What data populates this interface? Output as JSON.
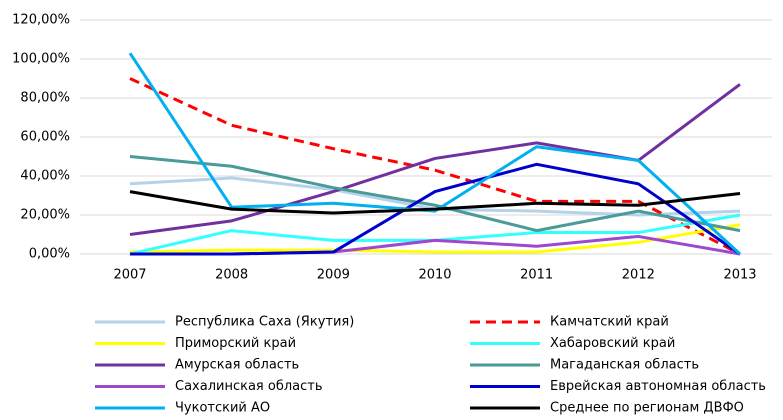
{
  "chart_data": {
    "type": "line",
    "categories": [
      "2007",
      "2008",
      "2009",
      "2010",
      "2011",
      "2012",
      "2013"
    ],
    "series": [
      {
        "name": "Республика Саха (Якутия)",
        "color": "#b4d3ea",
        "values": [
          36,
          39,
          33,
          23,
          22,
          20,
          22
        ]
      },
      {
        "name": "Камчатский край",
        "color": "#ff0000",
        "dash": true,
        "values": [
          90,
          66,
          54,
          43,
          27,
          27,
          0
        ]
      },
      {
        "name": "Приморский край",
        "color": "#ffff00",
        "values": [
          1,
          2,
          2,
          1,
          1,
          6,
          15
        ]
      },
      {
        "name": "Хабаровский край",
        "color": "#33ffff",
        "values": [
          0,
          12,
          7,
          7,
          11,
          11,
          20
        ]
      },
      {
        "name": "Амурская область",
        "color": "#7030a0",
        "values": [
          10,
          17,
          32,
          49,
          57,
          48,
          87
        ]
      },
      {
        "name": "Магаданская область",
        "color": "#4a9a98",
        "values": [
          50,
          45,
          34,
          25,
          12,
          22,
          12
        ]
      },
      {
        "name": "Сахалинская область",
        "color": "#9e48cf",
        "values": [
          0,
          0,
          1,
          7,
          4,
          9,
          0
        ]
      },
      {
        "name": "Еврейская автономная область",
        "color": "#0000cc",
        "values": [
          0,
          0,
          1,
          32,
          46,
          36,
          0
        ]
      },
      {
        "name": "Чукотский АО",
        "color": "#00b0f0",
        "values": [
          103,
          24,
          26,
          22,
          55,
          48,
          0
        ]
      },
      {
        "name": "Среднее по регионам ДВФО",
        "color": "#000000",
        "values": [
          32,
          23,
          21,
          23,
          26,
          25,
          31
        ]
      }
    ],
    "ylim": [
      0,
      120
    ],
    "yticks": [
      {
        "value": 0,
        "label": "0,00%"
      },
      {
        "value": 20,
        "label": "20,00%"
      },
      {
        "value": 40,
        "label": "40,00%"
      },
      {
        "value": 60,
        "label": "60,00%"
      },
      {
        "value": 80,
        "label": "80,00%"
      },
      {
        "value": 100,
        "label": "100,00%"
      },
      {
        "value": 120,
        "label": "120,00%"
      }
    ],
    "grid": true,
    "legend": "bottom"
  }
}
